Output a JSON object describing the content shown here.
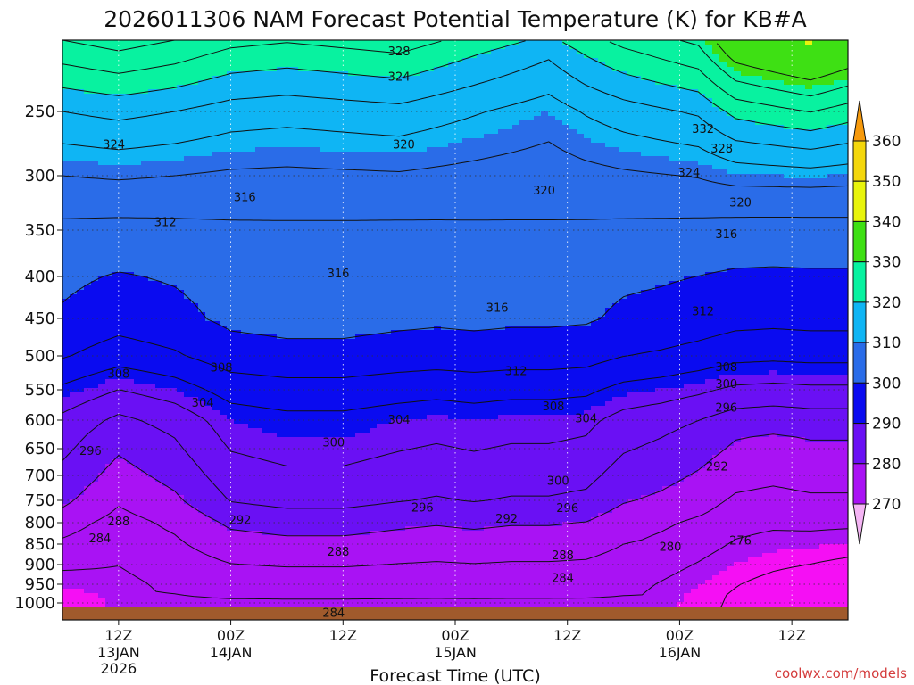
{
  "chart_data": {
    "type": "heatmap",
    "title": "2026011306 NAM Forecast Potential Temperature (K) for KB#A",
    "xlabel": "Forecast Time (UTC)",
    "ylabel": "",
    "x_ticks": [
      {
        "label": "12Z",
        "sub1": "13JAN",
        "sub2": "2026",
        "hour": 6
      },
      {
        "label": "00Z",
        "sub1": "14JAN",
        "sub2": "",
        "hour": 18
      },
      {
        "label": "12Z",
        "sub1": "",
        "sub2": "",
        "hour": 30
      },
      {
        "label": "00Z",
        "sub1": "15JAN",
        "sub2": "",
        "hour": 42
      },
      {
        "label": "12Z",
        "sub1": "",
        "sub2": "",
        "hour": 54
      },
      {
        "label": "00Z",
        "sub1": "16JAN",
        "sub2": "",
        "hour": 66
      },
      {
        "label": "12Z",
        "sub1": "",
        "sub2": "",
        "hour": 78
      }
    ],
    "x_range_hours": [
      0,
      84
    ],
    "y_ticks": [
      "250",
      "300",
      "350",
      "400",
      "450",
      "500",
      "550",
      "600",
      "650",
      "700",
      "750",
      "800",
      "850",
      "900",
      "950",
      "1000"
    ],
    "y_tick_values": [
      250,
      300,
      350,
      400,
      450,
      500,
      550,
      600,
      650,
      700,
      750,
      800,
      850,
      900,
      950,
      1000
    ],
    "y_range_hpa": [
      200,
      1020
    ],
    "y_scale": "log",
    "grid": true,
    "colorbar": {
      "labels": [
        "360",
        "350",
        "340",
        "330",
        "320",
        "310",
        "300",
        "290",
        "280",
        "270"
      ],
      "levels": [
        270,
        280,
        290,
        300,
        310,
        320,
        330,
        340,
        350,
        360
      ],
      "colors": [
        "#f4b4f4",
        "#f50ff4",
        "#a912f4",
        "#6a10f4",
        "#0a0bf0",
        "#2a6ce8",
        "#0fb5f4",
        "#08f2a0",
        "#3ee014",
        "#e8f40c",
        "#f4d70c",
        "#f79a0c"
      ],
      "placement": "right"
    },
    "isotherm_labels": [
      {
        "text": "328",
        "hour": 36,
        "p": 208
      },
      {
        "text": "324",
        "hour": 36,
        "p": 226
      },
      {
        "text": "324",
        "hour": 5.5,
        "p": 276
      },
      {
        "text": "320",
        "hour": 36.5,
        "p": 276
      },
      {
        "text": "332",
        "hour": 68.5,
        "p": 264
      },
      {
        "text": "328",
        "hour": 70.5,
        "p": 279
      },
      {
        "text": "324",
        "hour": 67,
        "p": 298
      },
      {
        "text": "320",
        "hour": 51.5,
        "p": 314
      },
      {
        "text": "320",
        "hour": 72.5,
        "p": 325
      },
      {
        "text": "316",
        "hour": 19.5,
        "p": 320
      },
      {
        "text": "312",
        "hour": 11,
        "p": 343
      },
      {
        "text": "316",
        "hour": 71,
        "p": 355
      },
      {
        "text": "316",
        "hour": 29.5,
        "p": 397
      },
      {
        "text": "316",
        "hour": 46.5,
        "p": 438
      },
      {
        "text": "312",
        "hour": 68.5,
        "p": 442
      },
      {
        "text": "308",
        "hour": 6,
        "p": 527
      },
      {
        "text": "308",
        "hour": 17,
        "p": 518
      },
      {
        "text": "312",
        "hour": 48.5,
        "p": 523
      },
      {
        "text": "308",
        "hour": 71,
        "p": 517
      },
      {
        "text": "300",
        "hour": 71,
        "p": 542
      },
      {
        "text": "304",
        "hour": 15,
        "p": 572
      },
      {
        "text": "308",
        "hour": 52.5,
        "p": 578
      },
      {
        "text": "304",
        "hour": 36,
        "p": 600
      },
      {
        "text": "304",
        "hour": 56,
        "p": 598
      },
      {
        "text": "296",
        "hour": 71,
        "p": 580
      },
      {
        "text": "300",
        "hour": 29,
        "p": 640
      },
      {
        "text": "296",
        "hour": 3,
        "p": 655
      },
      {
        "text": "292",
        "hour": 70,
        "p": 684
      },
      {
        "text": "300",
        "hour": 53,
        "p": 712
      },
      {
        "text": "296",
        "hour": 38.5,
        "p": 767
      },
      {
        "text": "296",
        "hour": 54,
        "p": 768
      },
      {
        "text": "292",
        "hour": 47.5,
        "p": 792
      },
      {
        "text": "288",
        "hour": 6,
        "p": 798
      },
      {
        "text": "292",
        "hour": 19,
        "p": 795
      },
      {
        "text": "284",
        "hour": 4,
        "p": 838
      },
      {
        "text": "288",
        "hour": 29.5,
        "p": 870
      },
      {
        "text": "288",
        "hour": 53.5,
        "p": 878
      },
      {
        "text": "280",
        "hour": 65,
        "p": 858
      },
      {
        "text": "276",
        "hour": 72.5,
        "p": 843
      },
      {
        "text": "284",
        "hour": 53.5,
        "p": 935
      },
      {
        "text": "284",
        "hour": 29,
        "p": 1012
      }
    ]
  },
  "credit": "coolwx.com/models"
}
